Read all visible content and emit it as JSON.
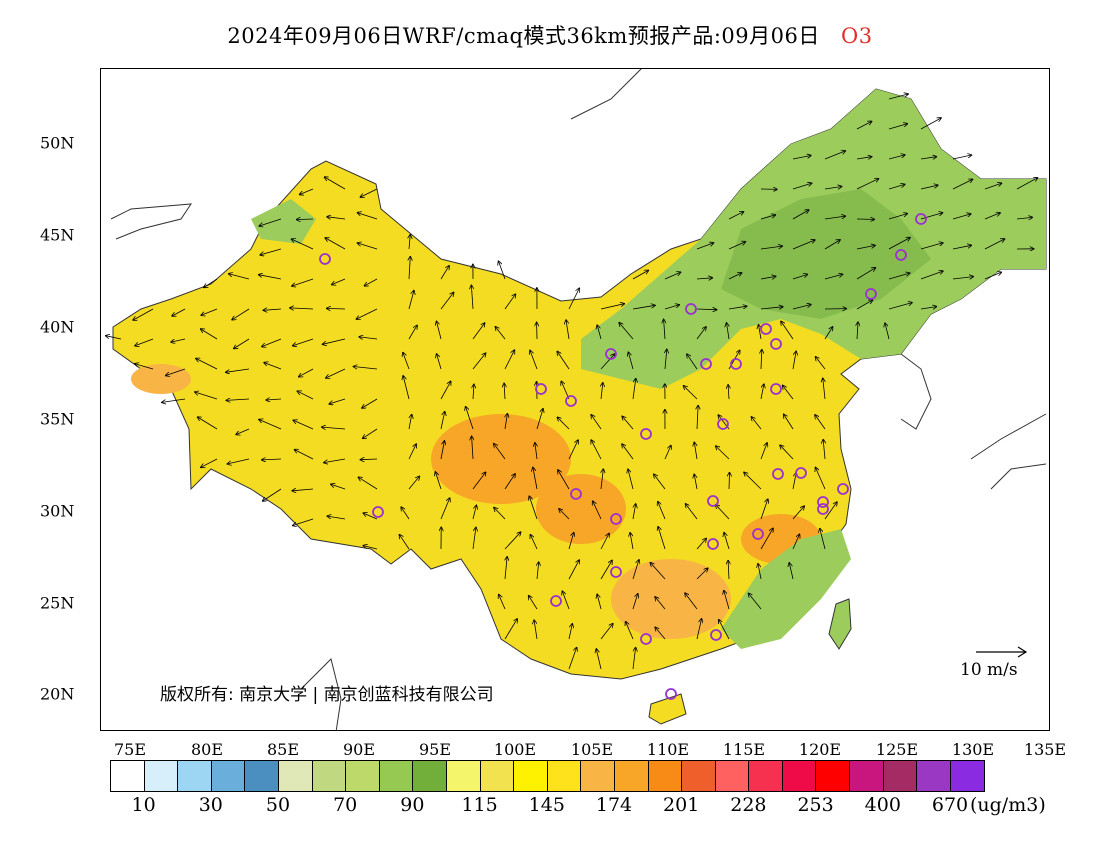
{
  "title": {
    "main": "2024年09月06日WRF/cmaq模式36km预报产品:09月06日",
    "pollutant": "O3"
  },
  "axes": {
    "y_labels": [
      "50N",
      "45N",
      "40N",
      "35N",
      "30N",
      "25N",
      "20N"
    ],
    "x_labels": [
      "75E",
      "80E",
      "85E",
      "90E",
      "95E",
      "100E",
      "105E",
      "110E",
      "115E",
      "120E",
      "125E",
      "130E",
      "135E"
    ]
  },
  "copyright": "版权所有: 南京大学 | 南京创蓝科技有限公司",
  "wind_reference": "10 m/s",
  "colorbar": {
    "colors": [
      "#ffffff",
      "#d6effb",
      "#9cd6f3",
      "#6aaedc",
      "#4a8fc0",
      "#dfe8b6",
      "#c0d880",
      "#bcd96a",
      "#95c951",
      "#72ae3a",
      "#f4f56a",
      "#f2e250",
      "#fff200",
      "#fde21c",
      "#f8b445",
      "#f7a628",
      "#f78b15",
      "#ef5f2b",
      "#ff6060",
      "#f6304f",
      "#ef0a48",
      "#ff0000",
      "#c9157e",
      "#a52b64",
      "#9a38c4",
      "#8a2be2"
    ],
    "labels": [
      "10",
      "30",
      "50",
      "70",
      "90",
      "115",
      "145",
      "174",
      "201",
      "228",
      "253",
      "400",
      "670"
    ],
    "unit": "(ug/m3)"
  }
}
